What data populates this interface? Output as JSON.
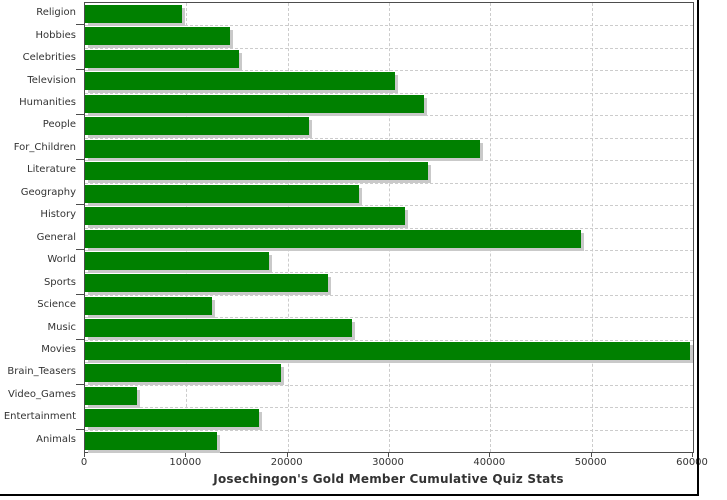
{
  "chart_data": {
    "type": "bar",
    "orientation": "horizontal",
    "title": "Josechingon's Gold Member Cumulative Quiz Stats",
    "categories": [
      "Religion",
      "Hobbies",
      "Celebrities",
      "Television",
      "Humanities",
      "People",
      "For_Children",
      "Literature",
      "Geography",
      "History",
      "General",
      "World",
      "Sports",
      "Science",
      "Music",
      "Movies",
      "Brain_Teasers",
      "Video_Games",
      "Entertainment",
      "Animals"
    ],
    "values": [
      9600,
      14300,
      15200,
      30600,
      33500,
      22100,
      39000,
      33800,
      27000,
      31600,
      48900,
      18200,
      24000,
      12500,
      26300,
      59700,
      19300,
      5100,
      17200,
      13000
    ],
    "xlim": [
      0,
      60000
    ],
    "xticks": [
      0,
      10000,
      20000,
      30000,
      40000,
      50000,
      60000
    ],
    "xlabel": "",
    "ylabel": "",
    "legend": "none",
    "grid": "dashed-both",
    "colors": {
      "bar": "#008000",
      "bar_shadow": "#c9c9c9",
      "grid": "#cccccc",
      "axis": "#4d4d4d",
      "text": "#333333",
      "frame_edge": "#000000",
      "background": "#ffffff"
    }
  }
}
